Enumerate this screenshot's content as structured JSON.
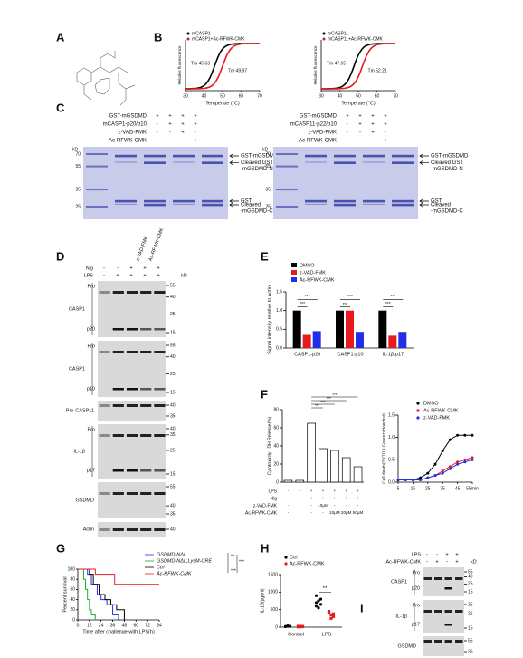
{
  "panel_labels": [
    "A",
    "B",
    "C",
    "D",
    "E",
    "F",
    "G",
    "H",
    "I"
  ],
  "b": [
    {
      "legend": [
        "mCASP1",
        "mCASP1+Ac-RFWK-CMK"
      ],
      "colors": [
        "#000000",
        "#e8191f"
      ],
      "tm": [
        45.63,
        49.97
      ],
      "tm_labels": [
        "Tm 45.63",
        "Tm 49.97"
      ],
      "xlabel": "Temperate (℃)",
      "ylabel": "Relative fluorescence",
      "xlim": [
        30,
        70
      ],
      "xticks": [
        30,
        40,
        50,
        60,
        70
      ]
    },
    {
      "legend": [
        "mCASP11",
        "mCASP11+Ac-RFWK-CMK"
      ],
      "colors": [
        "#000000",
        "#e8191f"
      ],
      "tm": [
        47.65,
        52.21
      ],
      "tm_labels": [
        "Tm 47.65",
        "Tm 52.21"
      ],
      "xlabel": "Temperate (℃)",
      "ylabel": "Relative fluorescence",
      "xlim": [
        30,
        70
      ],
      "xticks": [
        30,
        40,
        50,
        60,
        70
      ]
    }
  ],
  "c": [
    {
      "rows": [
        {
          "label": "GST-mGSDMD",
          "signs": [
            "+",
            "+",
            "+",
            "+"
          ]
        },
        {
          "label": "mCASP1-p20/p10",
          "signs": [
            "-",
            "+",
            "+",
            "+"
          ]
        },
        {
          "label": "z-VAD-FMK",
          "signs": [
            "-",
            "-",
            "+",
            "-"
          ]
        },
        {
          "label": "Ac-RFWK-CMK",
          "signs": [
            "-",
            "-",
            "-",
            "+"
          ]
        }
      ],
      "kd_label": "kD",
      "markers": [
        70,
        55,
        35,
        25
      ],
      "annotations": [
        "GST-mGSDMD",
        "Cleaved GST",
        "-mGSDMD-N",
        "GST",
        "Cleaved",
        "-mGSDMD-C"
      ]
    },
    {
      "rows": [
        {
          "label": "GST-mGSDMD",
          "signs": [
            "+",
            "+",
            "+",
            "+"
          ]
        },
        {
          "label": "mCASP11-p22/p10",
          "signs": [
            "-",
            "+",
            "+",
            "+"
          ]
        },
        {
          "label": "z-VAD-FMK",
          "signs": [
            "-",
            "-",
            "+",
            "-"
          ]
        },
        {
          "label": "Ac-RFWK-CMK",
          "signs": [
            "-",
            "-",
            "-",
            "+"
          ]
        }
      ],
      "kd_label": "kD",
      "markers": [
        70,
        55,
        35,
        25
      ],
      "annotations": [
        "GST-mGSDMD",
        "Cleaved GST",
        "-mGSDMD-N",
        "GST",
        "Cleaved",
        "-mGSDMD-C"
      ]
    }
  ],
  "d": {
    "column_labels": [
      "z-VAD-FMK",
      "Ac-RFWK-CMK"
    ],
    "rows": [
      {
        "label": "Nig",
        "signs": [
          "-",
          "-",
          "+",
          "+",
          "+"
        ]
      },
      {
        "label": "LPS",
        "signs": [
          "-",
          "+",
          "+",
          "+",
          "+"
        ]
      }
    ],
    "kd_label": "kD",
    "blots": [
      {
        "name": "CASP1",
        "sub": [
          "Pro",
          "p20"
        ],
        "markers": [
          55,
          40,
          25,
          15
        ]
      },
      {
        "name": "CASP1",
        "sub": [
          "Pro",
          "p10"
        ],
        "markers": [
          55,
          40,
          25,
          15
        ]
      },
      {
        "name": "Pro-CASP11",
        "sub": [],
        "markers": [
          40,
          35
        ]
      },
      {
        "name": "IL-1β",
        "sub": [
          "Pro",
          "p17"
        ],
        "markers": [
          40,
          35,
          25,
          15
        ]
      },
      {
        "name": "GSDMD",
        "sub": [],
        "markers": [
          55,
          40,
          35
        ]
      },
      {
        "name": "Actin",
        "sub": [],
        "markers": [
          40
        ]
      }
    ]
  },
  "e": {
    "type": "bar",
    "categories": [
      "CASP1-p20",
      "CASP1-p10",
      "IL-1β-p17"
    ],
    "series": [
      {
        "name": "DMSO",
        "color": "#000000",
        "values": [
          1.0,
          1.0,
          1.0
        ]
      },
      {
        "name": "z-VAD-FMK",
        "color": "#e8191f",
        "values": [
          0.35,
          1.0,
          0.33
        ]
      },
      {
        "name": "Ac-RFWK-CMK",
        "color": "#1f2fe8",
        "values": [
          0.45,
          0.43,
          0.43
        ]
      }
    ],
    "ylabel": "Signal intensity relative to Actin",
    "ylim": [
      0,
      1.5
    ],
    "yticks": [
      {
        "value": 0,
        "label": "0.0"
      },
      0.5,
      {
        "value": 1,
        "label": "1.0"
      },
      1.5
    ],
    "sig": [
      "***",
      "***",
      "ns",
      "***",
      "***",
      "***"
    ]
  },
  "f_bar": {
    "type": "bar",
    "values": [
      2,
      2,
      65,
      37,
      35,
      27,
      17
    ],
    "ylabel": "Cytotoxicity LDH Release(%)",
    "ylim": [
      0,
      80
    ],
    "yticks": [
      0,
      20,
      40,
      60,
      80
    ],
    "rows": [
      {
        "label": "LPS",
        "signs": [
          "-",
          "+",
          "+",
          "+",
          "+",
          "+",
          "+"
        ]
      },
      {
        "label": "Nig",
        "signs": [
          "-",
          "-",
          "+",
          "+",
          "+",
          "+",
          "+"
        ]
      },
      {
        "label": "z-VAD-FMK",
        "signs": [
          "-",
          "-",
          "-",
          "10μM",
          "-",
          "-",
          "-"
        ]
      },
      {
        "label": "Ac-RFWK-CMK",
        "signs": [
          "-",
          "-",
          "-",
          "-",
          "10μM",
          "20μM",
          "50μM"
        ]
      }
    ],
    "sig": [
      "***",
      "***",
      "***",
      "***"
    ]
  },
  "f_line": {
    "type": "line",
    "x": [
      5,
      10,
      15,
      20,
      25,
      30,
      35,
      40,
      45,
      50,
      55
    ],
    "series": [
      {
        "name": "DMSO",
        "color": "#000000",
        "values": [
          0.05,
          0.05,
          0.05,
          0.1,
          0.2,
          0.4,
          0.7,
          0.95,
          1.05,
          1.05,
          1.05
        ]
      },
      {
        "name": "Ac-RFWK-CMK",
        "color": "#e8191f",
        "values": [
          0.05,
          0.05,
          0.05,
          0.05,
          0.1,
          0.15,
          0.25,
          0.35,
          0.45,
          0.5,
          0.55
        ]
      },
      {
        "name": "z-VAD-FMK",
        "color": "#1f2fe8",
        "values": [
          0.05,
          0.05,
          0.05,
          0.05,
          0.1,
          0.15,
          0.2,
          0.3,
          0.4,
          0.45,
          0.5
        ]
      }
    ],
    "ylabel": "Cell death(SYTOX Green+/Hoechst)",
    "xlim": [
      5,
      55
    ],
    "xticks": [
      5,
      15,
      25,
      35,
      45,
      {
        "value": 55,
        "label": "55min"
      }
    ],
    "ylim": [
      0,
      1.5
    ],
    "yticks": [
      {
        "value": 0,
        "label": "0.0"
      },
      0.5,
      {
        "value": 1,
        "label": "1.0"
      },
      1.5
    ]
  },
  "g": {
    "type": "line",
    "series": [
      {
        "name": "GSDMD-NΔL",
        "color": "#1f2fe8",
        "x": [
          0,
          10,
          14,
          20,
          24,
          30,
          36,
          42
        ],
        "values": [
          100,
          90,
          70,
          50,
          40,
          30,
          10,
          0
        ]
      },
      {
        "name": "GSDMD-NΔL;LysM-CRE",
        "color": "#22a82a",
        "x": [
          0,
          6,
          8,
          10,
          12,
          14,
          18
        ],
        "values": [
          100,
          80,
          60,
          40,
          20,
          10,
          0
        ]
      },
      {
        "name": "Ctrl",
        "color": "#000000",
        "x": [
          0,
          12,
          16,
          22,
          28,
          34,
          40,
          48
        ],
        "values": [
          100,
          90,
          70,
          50,
          40,
          30,
          20,
          0
        ]
      },
      {
        "name": "Ac-RFWK-CMK",
        "color": "#e8191f",
        "x": [
          0,
          18,
          38,
          84
        ],
        "values": [
          100,
          90,
          70,
          70
        ]
      }
    ],
    "xlabel": "Time after challenge with LPS(h)",
    "ylabel": "Percent survival",
    "xlim": [
      0,
      84
    ],
    "xticks": [
      0,
      12,
      24,
      36,
      48,
      60,
      72,
      84
    ],
    "ylim": [
      0,
      100
    ],
    "yticks": [
      0,
      20,
      40,
      60,
      80,
      100
    ],
    "sig": [
      "**",
      "***",
      "***"
    ]
  },
  "h": {
    "type": "scatter",
    "categories": [
      "Control",
      "LPS"
    ],
    "series": [
      {
        "name": "Ctrl",
        "color": "#000000",
        "values": [
          [
            20,
            30,
            25,
            15,
            35,
            20
          ],
          [
            900,
            750,
            650,
            600,
            550,
            800,
            700
          ]
        ]
      },
      {
        "name": "Ac-RFWK-CMK",
        "color": "#e8191f",
        "values": [
          [
            10,
            20,
            15,
            25,
            10,
            20
          ],
          [
            450,
            350,
            300,
            400,
            250,
            380
          ]
        ]
      }
    ],
    "ylabel": "IL-1β(pg/ml)",
    "ylim": [
      0,
      1500
    ],
    "yticks": [
      0,
      500,
      1000,
      1500
    ],
    "sig": [
      "**"
    ]
  },
  "i": {
    "rows": [
      {
        "label": "LPS",
        "signs": [
          "-",
          "-",
          "+",
          "+"
        ]
      },
      {
        "label": "Ac-RFWK-CMK",
        "signs": [
          "-",
          "+",
          "-",
          "+"
        ]
      }
    ],
    "kd_label": "kD",
    "blots": [
      {
        "name": "CASP1",
        "sub": [
          "Pro",
          "p20"
        ],
        "markers": [
          55,
          40,
          25,
          15
        ]
      },
      {
        "name": "IL-1β",
        "sub": [
          "Pro",
          "p17"
        ],
        "markers": [
          35,
          25,
          15
        ]
      },
      {
        "name": "GSDMD",
        "sub": [],
        "markers": [
          55,
          35
        ]
      },
      {
        "name": "Actin",
        "sub": [],
        "markers": [
          40
        ]
      }
    ]
  }
}
